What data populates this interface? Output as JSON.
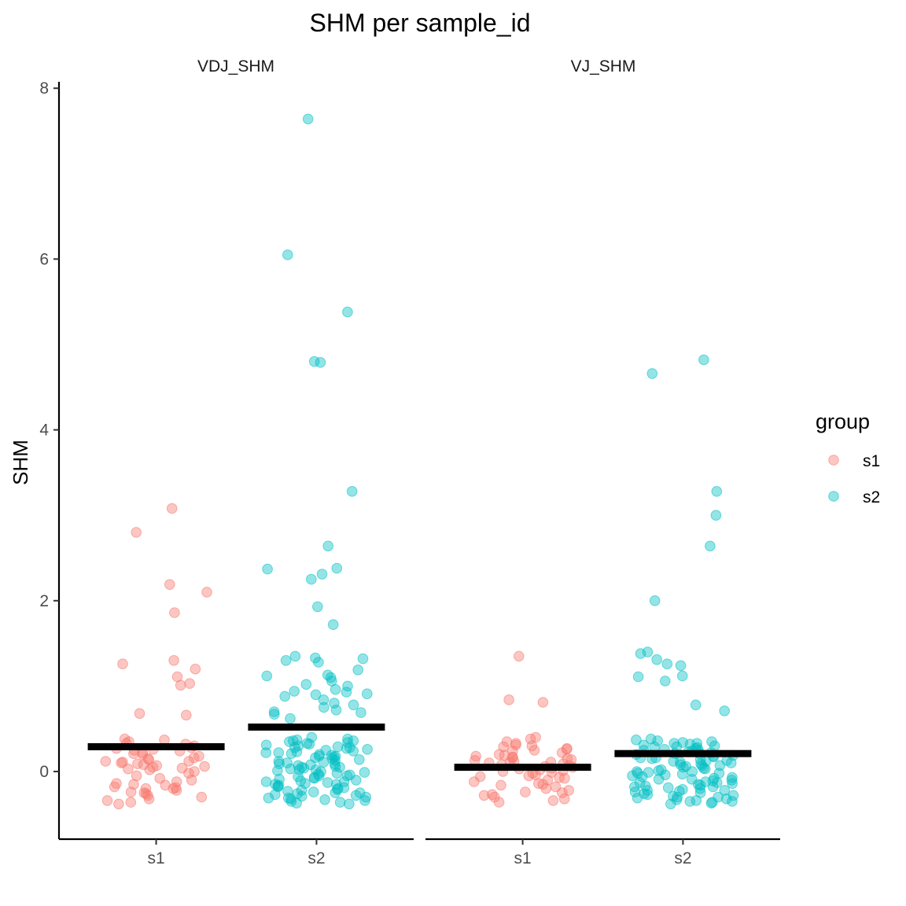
{
  "chart_data": {
    "type": "scatter",
    "subtype": "jitter-strip with mean bars, faceted",
    "title": "SHM per sample_id",
    "ylabel": "SHM",
    "xlabel": "",
    "ylim": [
      -0.8,
      8
    ],
    "yticks": [
      0,
      2,
      4,
      6,
      8
    ],
    "categories": [
      "s1",
      "s2"
    ],
    "grid": false,
    "legend": {
      "title": "group",
      "position": "right",
      "entries": [
        {
          "label": "s1",
          "color": "#F8766D"
        },
        {
          "label": "s2",
          "color": "#00BFC4"
        }
      ]
    },
    "facets": [
      {
        "name": "VDJ_SHM",
        "means": [
          {
            "group": "s1",
            "value": 0.29
          },
          {
            "group": "s2",
            "value": 0.52
          }
        ],
        "points": [
          {
            "group": "s1",
            "values": [
              3.08,
              2.8,
              2.19,
              2.1,
              1.86,
              1.3,
              1.26,
              1.2,
              1.11,
              1.03,
              1.01,
              0.68,
              0.66,
              0.38,
              0.37,
              0.35,
              0.33,
              0.32,
              0.3,
              0.28,
              0.27,
              0.26,
              0.24,
              0.22,
              0.21,
              0.2,
              0.18,
              0.16,
              0.15,
              0.14,
              0.12,
              0.11,
              0.1,
              0.09,
              0.08,
              0.07,
              0.06,
              0.05,
              0.04,
              0.03,
              0.02,
              0.0,
              -0.02,
              -0.05,
              -0.08,
              -0.1,
              -0.12,
              -0.14,
              -0.16,
              -0.18,
              -0.19,
              -0.2,
              -0.22,
              -0.24,
              -0.25,
              -0.26,
              -0.28,
              -0.3,
              -0.32,
              -0.34,
              -0.36,
              -0.38,
              -0.2,
              0.12,
              0.25,
              -0.15
            ]
          },
          {
            "group": "s2",
            "values": [
              7.64,
              6.05,
              5.38,
              4.8,
              4.79,
              3.28,
              2.64,
              2.38,
              2.37,
              2.31,
              2.25,
              1.93,
              1.72,
              1.35,
              1.33,
              1.32,
              1.3,
              1.28,
              1.19,
              1.13,
              1.12,
              1.1,
              1.06,
              1.02,
              1.0,
              0.96,
              0.94,
              0.93,
              0.91,
              0.9,
              0.88,
              0.84,
              0.8,
              0.78,
              0.75,
              0.72,
              0.7,
              0.69,
              0.67,
              0.62,
              0.4,
              0.38,
              0.37,
              0.36,
              0.35,
              0.34,
              0.33,
              0.32,
              0.31,
              0.3,
              0.29,
              0.28,
              0.27,
              0.26,
              0.25,
              0.24,
              0.23,
              0.22,
              0.21,
              0.2,
              0.19,
              0.18,
              0.17,
              0.16,
              0.15,
              0.14,
              0.13,
              0.12,
              0.11,
              0.1,
              0.09,
              0.08,
              0.07,
              0.06,
              0.05,
              0.04,
              0.03,
              0.02,
              0.01,
              0.0,
              -0.01,
              -0.02,
              -0.03,
              -0.04,
              -0.05,
              -0.06,
              -0.07,
              -0.08,
              -0.09,
              -0.1,
              -0.11,
              -0.12,
              -0.13,
              -0.14,
              -0.15,
              -0.16,
              -0.17,
              -0.18,
              -0.19,
              -0.2,
              -0.21,
              -0.22,
              -0.23,
              -0.24,
              -0.25,
              -0.26,
              -0.27,
              -0.28,
              -0.29,
              -0.3,
              -0.31,
              -0.32,
              -0.33,
              -0.34,
              -0.35,
              -0.36,
              -0.37,
              -0.38,
              0.28,
              0.18,
              0.05,
              -0.05,
              -0.15,
              -0.25,
              0.36,
              0.09,
              -0.12,
              -0.31,
              0.22,
              0.02
            ]
          }
        ]
      },
      {
        "name": "VJ_SHM",
        "means": [
          {
            "group": "s1",
            "value": 0.05
          },
          {
            "group": "s2",
            "value": 0.21
          }
        ],
        "points": [
          {
            "group": "s1",
            "values": [
              1.35,
              0.84,
              0.81,
              0.4,
              0.38,
              0.35,
              0.33,
              0.31,
              0.3,
              0.29,
              0.27,
              0.26,
              0.25,
              0.24,
              0.22,
              0.2,
              0.18,
              0.17,
              0.16,
              0.15,
              0.14,
              0.13,
              0.12,
              0.11,
              0.1,
              0.09,
              0.08,
              0.07,
              0.06,
              0.05,
              0.04,
              0.03,
              0.02,
              0.01,
              0.0,
              -0.01,
              -0.02,
              -0.04,
              -0.05,
              -0.06,
              -0.08,
              -0.1,
              -0.12,
              -0.14,
              -0.16,
              -0.18,
              -0.2,
              -0.22,
              -0.24,
              -0.25,
              -0.27,
              -0.28,
              -0.3,
              -0.32,
              -0.34,
              -0.36,
              0.19,
              -0.07,
              0.11,
              -0.15
            ]
          },
          {
            "group": "s2",
            "values": [
              4.82,
              4.66,
              3.28,
              3.0,
              2.64,
              2.0,
              1.4,
              1.38,
              1.31,
              1.26,
              1.24,
              1.12,
              1.11,
              1.06,
              0.78,
              0.71,
              0.38,
              0.37,
              0.36,
              0.35,
              0.34,
              0.33,
              0.32,
              0.31,
              0.3,
              0.29,
              0.28,
              0.27,
              0.26,
              0.25,
              0.24,
              0.23,
              0.22,
              0.21,
              0.2,
              0.19,
              0.18,
              0.17,
              0.16,
              0.15,
              0.14,
              0.13,
              0.12,
              0.11,
              0.1,
              0.09,
              0.08,
              0.07,
              0.06,
              0.05,
              0.04,
              0.03,
              0.02,
              0.01,
              0.0,
              -0.01,
              -0.02,
              -0.03,
              -0.04,
              -0.05,
              -0.06,
              -0.07,
              -0.08,
              -0.09,
              -0.1,
              -0.11,
              -0.12,
              -0.13,
              -0.14,
              -0.15,
              -0.16,
              -0.17,
              -0.18,
              -0.19,
              -0.2,
              -0.21,
              -0.22,
              -0.23,
              -0.24,
              -0.25,
              -0.26,
              -0.27,
              -0.28,
              -0.29,
              -0.3,
              -0.31,
              -0.32,
              -0.33,
              -0.34,
              -0.35,
              -0.36,
              -0.37,
              -0.38,
              0.29,
              0.12,
              -0.02,
              -0.18,
              -0.3,
              0.33,
              0.07,
              0.25,
              -0.09,
              -0.22,
              0.16,
              0.0,
              -0.35,
              0.21,
              -0.13
            ]
          }
        ]
      }
    ]
  }
}
